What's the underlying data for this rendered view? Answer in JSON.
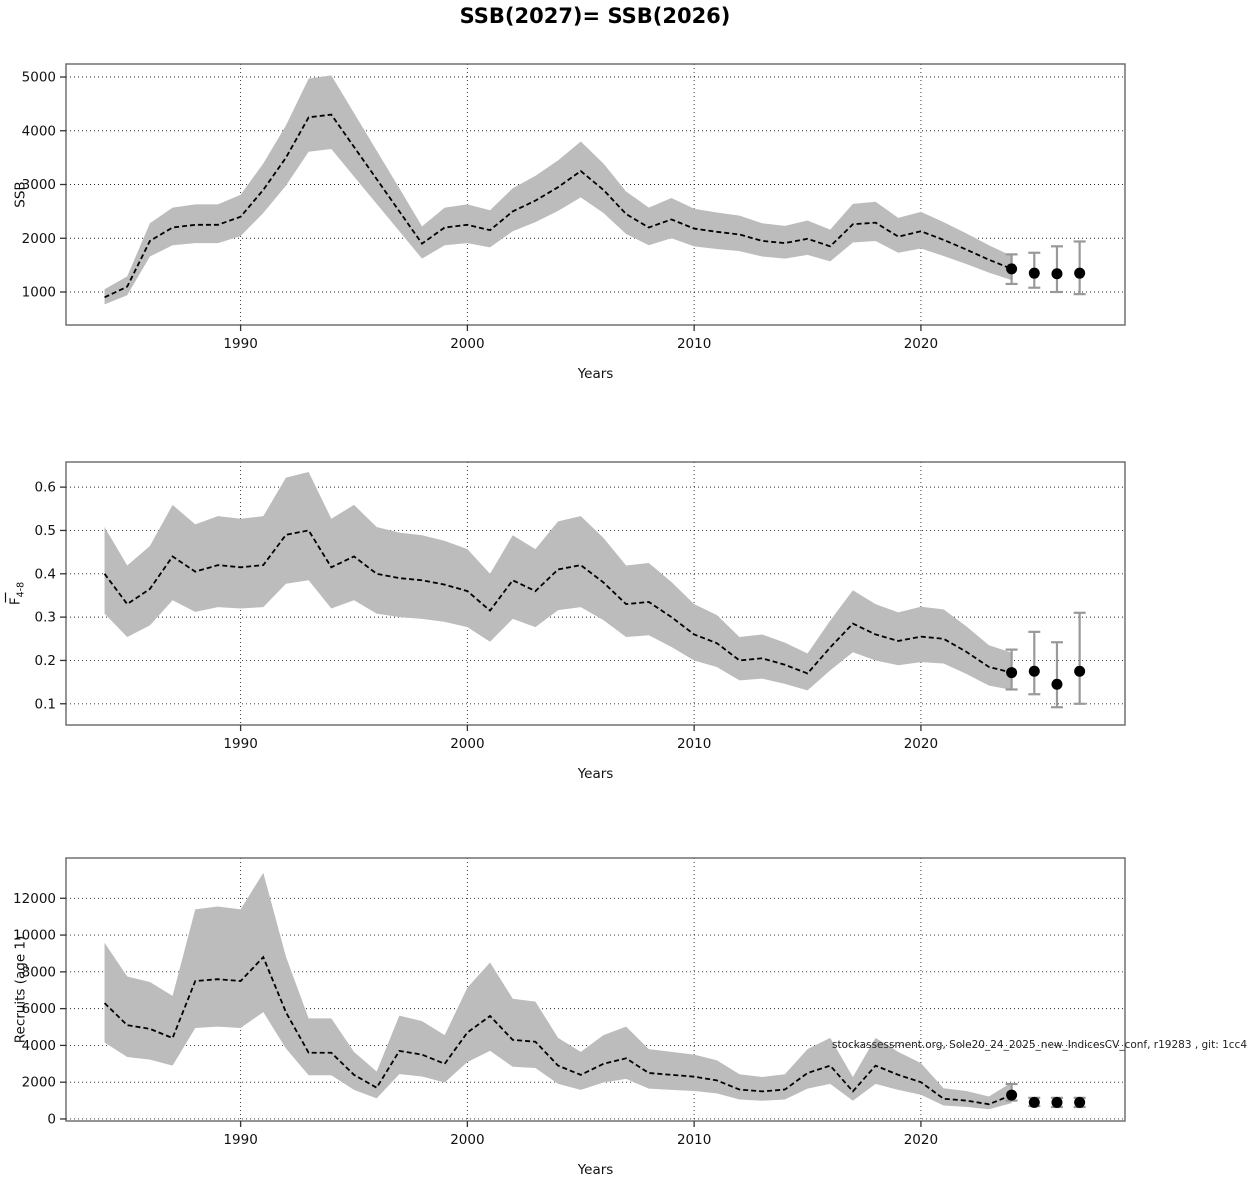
{
  "page": {
    "title": "SSB(2027)= SSB(2026)",
    "footer": "stockassessment.org, Sole20_24_2025_new_IndicesCV_conf, r19283 , git: 1cc4"
  },
  "colors": {
    "band": "#bcbcbc",
    "line": "#000000",
    "error_bar": "#999999",
    "dot": "#000000",
    "grid": "#000000",
    "box": "#666666",
    "text": "#111111"
  },
  "chart_data": [
    {
      "type": "line",
      "panel": "ssb",
      "ylabel": "SSB",
      "xlabel": "Years",
      "grid": true,
      "xticks": [
        1990,
        2000,
        2010,
        2020
      ],
      "yticks": [
        1000,
        2000,
        3000,
        4000,
        5000
      ],
      "xlim": [
        1982.3,
        2029.0
      ],
      "ylim": [
        386,
        5242
      ],
      "x": [
        1984,
        1985,
        1986,
        1987,
        1988,
        1989,
        1990,
        1991,
        1992,
        1993,
        1994,
        1995,
        1996,
        1997,
        1998,
        1999,
        2000,
        2001,
        2002,
        2003,
        2004,
        2005,
        2006,
        2007,
        2008,
        2009,
        2010,
        2011,
        2012,
        2013,
        2014,
        2015,
        2016,
        2017,
        2018,
        2019,
        2020,
        2021,
        2022,
        2023,
        2024
      ],
      "values": [
        900,
        1100,
        1950,
        2200,
        2250,
        2250,
        2400,
        2900,
        3500,
        4250,
        4300,
        3700,
        3100,
        2500,
        1900,
        2200,
        2250,
        2150,
        2500,
        2700,
        2950,
        3250,
        2900,
        2450,
        2200,
        2350,
        2180,
        2120,
        2070,
        1950,
        1910,
        1990,
        1850,
        2260,
        2290,
        2030,
        2130,
        1970,
        1790,
        1600,
        1430
      ],
      "ci_low": [
        770,
        940,
        1660,
        1870,
        1910,
        1910,
        2040,
        2470,
        2980,
        3610,
        3660,
        3150,
        2640,
        2130,
        1620,
        1870,
        1910,
        1830,
        2130,
        2300,
        2510,
        2760,
        2470,
        2080,
        1870,
        2000,
        1850,
        1800,
        1760,
        1660,
        1620,
        1690,
        1570,
        1920,
        1950,
        1730,
        1810,
        1670,
        1520,
        1360,
        1220
      ],
      "ci_high": [
        1050,
        1290,
        2280,
        2570,
        2630,
        2630,
        2810,
        3390,
        4100,
        4970,
        5030,
        4330,
        3630,
        2930,
        2220,
        2570,
        2630,
        2520,
        2930,
        3160,
        3450,
        3800,
        3390,
        2870,
        2570,
        2750,
        2550,
        2480,
        2420,
        2280,
        2230,
        2330,
        2160,
        2640,
        2680,
        2380,
        2490,
        2300,
        2090,
        1870,
        1670
      ],
      "forecast": {
        "x": [
          2024,
          2025,
          2026,
          2027
        ],
        "values": [
          1430,
          1350,
          1340,
          1350
        ],
        "ci_low": [
          1150,
          1080,
          1000,
          960
        ],
        "ci_high": [
          1700,
          1730,
          1850,
          1940
        ]
      }
    },
    {
      "type": "line",
      "panel": "fbar",
      "ylabel": "F",
      "ylabel_sub": "4-8",
      "ylabel_overline": true,
      "xlabel": "Years",
      "grid": true,
      "xticks": [
        1990,
        2000,
        2010,
        2020
      ],
      "yticks": [
        0.1,
        0.2,
        0.3,
        0.4,
        0.5,
        0.6
      ],
      "xlim": [
        1982.3,
        2029.0
      ],
      "ylim": [
        0.051,
        0.658
      ],
      "x": [
        1984,
        1985,
        1986,
        1987,
        1988,
        1989,
        1990,
        1991,
        1992,
        1993,
        1994,
        1995,
        1996,
        1997,
        1998,
        1999,
        2000,
        2001,
        2002,
        2003,
        2004,
        2005,
        2006,
        2007,
        2008,
        2009,
        2010,
        2011,
        2012,
        2013,
        2014,
        2015,
        2016,
        2017,
        2018,
        2019,
        2020,
        2021,
        2022,
        2023,
        2024
      ],
      "values": [
        0.4,
        0.33,
        0.365,
        0.44,
        0.405,
        0.42,
        0.415,
        0.42,
        0.49,
        0.5,
        0.415,
        0.44,
        0.4,
        0.39,
        0.385,
        0.375,
        0.36,
        0.315,
        0.385,
        0.36,
        0.41,
        0.42,
        0.38,
        0.33,
        0.335,
        0.3,
        0.26,
        0.24,
        0.2,
        0.205,
        0.19,
        0.17,
        0.23,
        0.285,
        0.26,
        0.245,
        0.255,
        0.25,
        0.22,
        0.185,
        0.172
      ],
      "ci_low": [
        0.308,
        0.254,
        0.281,
        0.339,
        0.312,
        0.323,
        0.32,
        0.323,
        0.377,
        0.385,
        0.32,
        0.339,
        0.308,
        0.3,
        0.296,
        0.289,
        0.277,
        0.243,
        0.296,
        0.277,
        0.316,
        0.323,
        0.293,
        0.254,
        0.258,
        0.231,
        0.2,
        0.185,
        0.154,
        0.158,
        0.146,
        0.131,
        0.177,
        0.219,
        0.2,
        0.189,
        0.196,
        0.193,
        0.169,
        0.142,
        0.132
      ],
      "ci_high": [
        0.508,
        0.419,
        0.464,
        0.559,
        0.514,
        0.533,
        0.527,
        0.533,
        0.622,
        0.635,
        0.527,
        0.559,
        0.508,
        0.495,
        0.489,
        0.476,
        0.457,
        0.4,
        0.489,
        0.457,
        0.521,
        0.533,
        0.483,
        0.419,
        0.425,
        0.381,
        0.33,
        0.305,
        0.254,
        0.26,
        0.241,
        0.216,
        0.292,
        0.362,
        0.33,
        0.311,
        0.324,
        0.318,
        0.279,
        0.235,
        0.218
      ],
      "forecast": {
        "x": [
          2024,
          2025,
          2026,
          2027
        ],
        "values": [
          0.172,
          0.175,
          0.145,
          0.175
        ],
        "ci_low": [
          0.133,
          0.122,
          0.092,
          0.1
        ],
        "ci_high": [
          0.225,
          0.266,
          0.242,
          0.31
        ]
      }
    },
    {
      "type": "line",
      "panel": "recruits",
      "ylabel": "Recruits (age 1)",
      "xlabel": "Years",
      "grid": true,
      "xticks": [
        1990,
        2000,
        2010,
        2020
      ],
      "yticks": [
        0,
        2000,
        4000,
        6000,
        8000,
        10000,
        12000
      ],
      "xlim": [
        1982.3,
        2029.0
      ],
      "ylim": [
        -110,
        14190
      ],
      "x": [
        1984,
        1985,
        1986,
        1987,
        1988,
        1989,
        1990,
        1991,
        1992,
        1993,
        1994,
        1995,
        1996,
        1997,
        1998,
        1999,
        2000,
        2001,
        2002,
        2003,
        2004,
        2005,
        2006,
        2007,
        2008,
        2009,
        2010,
        2011,
        2012,
        2013,
        2014,
        2015,
        2016,
        2017,
        2018,
        2019,
        2020,
        2021,
        2022,
        2023,
        2024
      ],
      "values": [
        6300,
        5100,
        4900,
        4400,
        7500,
        7600,
        7500,
        8800,
        5800,
        3600,
        3600,
        2400,
        1700,
        3700,
        3500,
        3000,
        4700,
        5600,
        4300,
        4200,
        2900,
        2400,
        3000,
        3300,
        2500,
        2400,
        2300,
        2100,
        1600,
        1500,
        1600,
        2500,
        2900,
        1500,
        2900,
        2400,
        2000,
        1100,
        1000,
        800,
        1300
      ],
      "ci_low": [
        4160,
        3370,
        3230,
        2900,
        4950,
        5020,
        4950,
        5810,
        3830,
        2380,
        2380,
        1580,
        1120,
        2440,
        2310,
        1980,
        3100,
        3700,
        2840,
        2770,
        1910,
        1580,
        1980,
        2180,
        1650,
        1580,
        1520,
        1390,
        1060,
        990,
        1060,
        1650,
        1910,
        990,
        1910,
        1580,
        1320,
        730,
        660,
        530,
        860
      ],
      "ci_high": [
        9580,
        7750,
        7450,
        6690,
        11400,
        11550,
        11400,
        13380,
        8820,
        5470,
        5470,
        3650,
        2580,
        5620,
        5320,
        4560,
        7140,
        8510,
        6540,
        6380,
        4410,
        3650,
        4560,
        5020,
        3800,
        3650,
        3500,
        3190,
        2430,
        2280,
        2430,
        3800,
        4410,
        2280,
        4410,
        3650,
        3040,
        1670,
        1520,
        1220,
        1980
      ],
      "forecast": {
        "x": [
          2024,
          2025,
          2026,
          2027
        ],
        "values": [
          1300,
          900,
          900,
          900
        ],
        "ci_low": [
          1000,
          700,
          650,
          650
        ],
        "ci_high": [
          1900,
          1150,
          1150,
          1150
        ]
      }
    }
  ]
}
